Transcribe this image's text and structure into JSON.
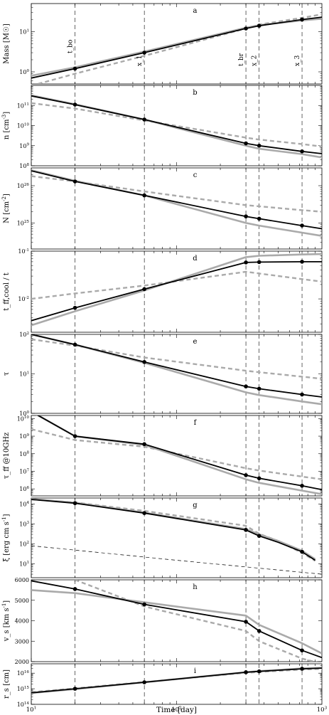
{
  "figure": {
    "xlabel": "Time [day]",
    "x_tick_labels": [
      "10^1",
      "10^2",
      "10^3"
    ]
  },
  "chart_data": [
    {
      "panel": "a",
      "type": "line",
      "ylabel": "Mass [M☉]",
      "xscale": "log",
      "yscale": "log",
      "xlim": [
        10,
        1000
      ],
      "ylim": [
        0.5,
        50
      ],
      "ytick_labels": [
        "10^0",
        "10^1"
      ],
      "vlines": [
        20,
        60,
        300,
        370,
        730
      ],
      "vline_labels": [
        "t_bo",
        "x_1",
        "t_br",
        "x_2",
        "x_3"
      ],
      "series": [
        {
          "style": "black-solid",
          "x": [
            10,
            20,
            60,
            300,
            370,
            730,
            1000
          ],
          "y": [
            0.7,
            1.2,
            3.0,
            12.0,
            14.0,
            20.0,
            23.0
          ],
          "markers": [
            1,
            2,
            3,
            4,
            5
          ]
        },
        {
          "style": "gray-solid",
          "x": [
            10,
            20,
            60,
            300,
            370,
            730,
            1000
          ],
          "y": [
            0.8,
            1.3,
            3.2,
            12.5,
            14.5,
            19.0,
            21.0
          ]
        },
        {
          "style": "gray-dashed",
          "x": [
            10,
            20,
            60,
            300,
            370,
            730,
            1000
          ],
          "y": [
            0.45,
            0.9,
            2.5,
            12.0,
            15.0,
            22.0,
            27.0
          ]
        }
      ]
    },
    {
      "panel": "b",
      "type": "line",
      "ylabel": "n [cm^-3]",
      "xscale": "log",
      "yscale": "log",
      "xlim": [
        10,
        1000
      ],
      "ylim": [
        100000000.0,
        1000000000000.0
      ],
      "ytick_labels": [
        "10^8",
        "10^9",
        "10^10",
        "10^11"
      ],
      "vlines": [
        20,
        60,
        300,
        370,
        730
      ],
      "series": [
        {
          "style": "black-solid",
          "x": [
            10,
            20,
            60,
            300,
            370,
            730,
            1000
          ],
          "y": [
            300000000000.0,
            110000000000.0,
            20000000000.0,
            1300000000.0,
            1000000000.0,
            520000000.0,
            400000000.0
          ],
          "markers": [
            1,
            2,
            3,
            4,
            5
          ]
        },
        {
          "style": "gray-solid",
          "x": [
            10,
            20,
            60,
            300,
            370,
            730,
            1000
          ],
          "y": [
            320000000000.0,
            115000000000.0,
            20000000000.0,
            1000000000.0,
            700000000.0,
            380000000.0,
            260000000.0
          ]
        },
        {
          "style": "gray-dashed",
          "x": [
            10,
            20,
            60,
            300,
            370,
            730,
            1000
          ],
          "y": [
            130000000000.0,
            70000000000.0,
            18000000000.0,
            2500000000.0,
            2000000000.0,
            1200000000.0,
            900000000.0
          ]
        }
      ]
    },
    {
      "panel": "c",
      "type": "line",
      "ylabel": "N [cm^-2]",
      "xscale": "log",
      "yscale": "log",
      "xlim": [
        10,
        1000
      ],
      "ylim": [
        2e+24,
        3e+26
      ],
      "ytick_labels": [
        "10^25",
        "10^26"
      ],
      "vlines": [
        20,
        60,
        300,
        370,
        730
      ],
      "series": [
        {
          "style": "black-solid",
          "x": [
            10,
            20,
            60,
            300,
            370,
            730,
            1000
          ],
          "y": [
            2.5e+26,
            1.3e+26,
            5.5e+25,
            1.5e+25,
            1.3e+25,
            8.5e+24,
            7e+24
          ],
          "markers": [
            1,
            2,
            3,
            4,
            5
          ]
        },
        {
          "style": "gray-solid",
          "x": [
            10,
            20,
            60,
            300,
            370,
            730,
            1000
          ],
          "y": [
            2.6e+26,
            1.35e+26,
            5.5e+25,
            1e+25,
            8.5e+24,
            5.5e+24,
            4.5e+24
          ]
        },
        {
          "style": "gray-dashed",
          "x": [
            10,
            20,
            60,
            300,
            370,
            730,
            1000
          ],
          "y": [
            1.8e+26,
            1.3e+26,
            7e+25,
            3e+25,
            2.8e+25,
            2.2e+25,
            2e+25
          ]
        }
      ]
    },
    {
      "panel": "d",
      "type": "line",
      "ylabel": "t_ff,cool / t",
      "xscale": "log",
      "yscale": "log",
      "xlim": [
        10,
        1000
      ],
      "ylim": [
        0.002,
        0.1
      ],
      "ytick_labels": [
        "10^-2",
        "10^-1"
      ],
      "vlines": [
        20,
        60,
        300,
        370,
        730
      ],
      "series": [
        {
          "style": "black-solid",
          "x": [
            10,
            20,
            60,
            300,
            370,
            730,
            1000
          ],
          "y": [
            0.0035,
            0.0065,
            0.016,
            0.058,
            0.059,
            0.06,
            0.06
          ],
          "markers": [
            1,
            2,
            3,
            4,
            5
          ]
        },
        {
          "style": "gray-solid",
          "x": [
            10,
            20,
            60,
            300,
            370,
            730,
            1000
          ],
          "y": [
            0.0028,
            0.0055,
            0.015,
            0.075,
            0.08,
            0.085,
            0.087
          ]
        },
        {
          "style": "gray-dashed",
          "x": [
            10,
            20,
            60,
            300,
            370,
            730,
            1000
          ],
          "y": [
            0.01,
            0.013,
            0.019,
            0.037,
            0.034,
            0.026,
            0.023
          ]
        }
      ]
    },
    {
      "panel": "e",
      "type": "line",
      "ylabel": "τ",
      "xscale": "log",
      "yscale": "log",
      "xlim": [
        10,
        1000
      ],
      "ylim": [
        1,
        100
      ],
      "ytick_labels": [
        "10^0",
        "10^1",
        "10^2"
      ],
      "vlines": [
        20,
        60,
        300,
        370,
        730
      ],
      "series": [
        {
          "style": "black-solid",
          "x": [
            10,
            20,
            60,
            300,
            370,
            730,
            1000
          ],
          "y": [
            100,
            55,
            20,
            4.8,
            4.2,
            3.0,
            2.6
          ],
          "markers": [
            1,
            2,
            3,
            4,
            5
          ]
        },
        {
          "style": "gray-solid",
          "x": [
            10,
            20,
            60,
            300,
            370,
            730,
            1000
          ],
          "y": [
            100,
            55,
            19,
            3.4,
            2.9,
            2.0,
            1.7
          ]
        },
        {
          "style": "gray-dashed",
          "x": [
            10,
            20,
            60,
            300,
            370,
            730,
            1000
          ],
          "y": [
            75,
            52,
            26,
            12,
            11,
            8.5,
            7.5
          ]
        }
      ]
    },
    {
      "panel": "f",
      "type": "line",
      "ylabel": "τ_ff @10GHz",
      "xscale": "log",
      "yscale": "log",
      "xlim": [
        10,
        1000
      ],
      "ylim": [
        400000.0,
        15000000000.0
      ],
      "ytick_labels": [
        "10^6",
        "10^7",
        "10^8",
        "10^9",
        "10^10"
      ],
      "vlines": [
        20,
        60,
        300,
        370,
        730
      ],
      "series": [
        {
          "style": "black-solid",
          "x": [
            10,
            20,
            60,
            300,
            370,
            730,
            1000
          ],
          "y": [
            25000000000.0,
            1000000000.0,
            350000000.0,
            6000000.0,
            4000000.0,
            1500000.0,
            900000.0
          ],
          "markers": [
            1,
            2,
            3,
            4,
            5
          ]
        },
        {
          "style": "gray-solid",
          "x": [
            10,
            20,
            60,
            300,
            370,
            730,
            1000
          ],
          "y": [
            25000000000.0,
            1000000000.0,
            320000000.0,
            3500000.0,
            2200000.0,
            800000.0,
            500000.0
          ]
        },
        {
          "style": "gray-dashed",
          "x": [
            10,
            20,
            60,
            300,
            370,
            730,
            1000
          ],
          "y": [
            2500000000.0,
            600000000.0,
            250000000.0,
            15000000.0,
            11000000.0,
            5000000.0,
            3500000.0
          ]
        }
      ]
    },
    {
      "panel": "g",
      "type": "line",
      "ylabel": "ξ [erg cm s^-1]",
      "xscale": "log",
      "yscale": "log",
      "xlim": [
        10,
        1000
      ],
      "ylim": [
        2,
        20000.0
      ],
      "ytick_labels": [
        "10^1",
        "10^2",
        "10^3",
        "10^4"
      ],
      "vlines": [
        20,
        60,
        300,
        370,
        730
      ],
      "series": [
        {
          "style": "black-solid",
          "x": [
            10,
            20,
            60,
            300,
            370,
            500,
            730,
            900
          ],
          "y": [
            17000,
            11000,
            3500,
            500,
            250,
            120,
            40,
            15
          ],
          "markers": [
            1,
            2,
            3,
            4,
            6
          ]
        },
        {
          "style": "gray-solid",
          "x": [
            10,
            20,
            60,
            300,
            370,
            500,
            730,
            900
          ],
          "y": [
            18000,
            11500,
            3700,
            550,
            300,
            140,
            45,
            17
          ]
        },
        {
          "style": "gray-dashed",
          "x": [
            10,
            20,
            60,
            300,
            370,
            500,
            730,
            900
          ],
          "y": [
            17000,
            12000,
            4500,
            800,
            320,
            140,
            35,
            14
          ]
        },
        {
          "style": "black-thin-dashed",
          "x": [
            10,
            100,
            1000
          ],
          "y": [
            80,
            15,
            3
          ]
        }
      ]
    },
    {
      "panel": "h",
      "type": "line",
      "ylabel": "v_s [km s^-1]",
      "xscale": "log",
      "yscale": "linear",
      "xlim": [
        10,
        1000
      ],
      "ylim": [
        2000,
        6000
      ],
      "yticks": [
        2000,
        3000,
        4000,
        5000,
        6000
      ],
      "ytick_labels": [
        "2000",
        "3000",
        "4000",
        "5000",
        "6000"
      ],
      "vlines": [
        20,
        60,
        300,
        370,
        730
      ],
      "series": [
        {
          "style": "black-solid",
          "x": [
            10,
            20,
            60,
            300,
            370,
            730,
            1000
          ],
          "y": [
            5950,
            5550,
            4800,
            3950,
            3500,
            2550,
            2200
          ],
          "markers": [
            1,
            2,
            3,
            4,
            5
          ]
        },
        {
          "style": "gray-solid",
          "x": [
            10,
            20,
            60,
            300,
            370,
            730,
            1000
          ],
          "y": [
            5500,
            5350,
            4900,
            4250,
            3800,
            2900,
            2400
          ]
        },
        {
          "style": "gray-dashed",
          "x": [
            20,
            60,
            300,
            370,
            730,
            1000
          ],
          "y": [
            6000,
            4700,
            3500,
            3000,
            2150,
            1900
          ]
        }
      ]
    },
    {
      "panel": "i",
      "type": "line",
      "ylabel": "r_s [cm]",
      "xscale": "log",
      "yscale": "log",
      "xlim": [
        10,
        1000
      ],
      "ylim": [
        100000000000000.0,
        4e+16
      ],
      "ytick_labels": [
        "10^14",
        "10^15",
        "10^16"
      ],
      "vlines": [
        20,
        60,
        300,
        370,
        730
      ],
      "series": [
        {
          "style": "black-solid",
          "x": [
            10,
            20,
            60,
            300,
            370,
            730,
            1000
          ],
          "y": [
            550000000000000.0,
            1000000000000000.0,
            2600000000000000.0,
            1.15e+16,
            1.3e+16,
            1.9e+16,
            2.1e+16
          ],
          "markers": [
            1,
            2,
            3,
            4,
            5
          ]
        },
        {
          "style": "gray-solid",
          "x": [
            10,
            20,
            60,
            300,
            370,
            730,
            1000
          ],
          "y": [
            530000000000000.0,
            950000000000000.0,
            2600000000000000.0,
            1.15e+16,
            1.35e+16,
            2e+16,
            2.2e+16
          ]
        },
        {
          "style": "gray-dashed",
          "x": [
            10,
            20,
            60,
            300,
            370,
            730,
            1000
          ],
          "y": [
            600000000000000.0,
            1050000000000000.0,
            2700000000000000.0,
            1.05e+16,
            1.2e+16,
            1.7e+16,
            1.9e+16
          ]
        }
      ]
    }
  ]
}
